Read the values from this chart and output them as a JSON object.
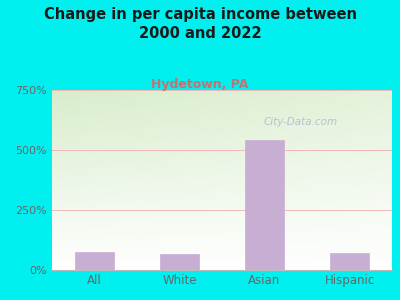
{
  "title": "Change in per capita income between\n2000 and 2022",
  "subtitle": "Hydetown, PA",
  "categories": [
    "All",
    "White",
    "Asian",
    "Hispanic"
  ],
  "values": [
    75,
    65,
    540,
    70
  ],
  "bar_color": "#c9aed4",
  "bar_edge_color": "#c9aed4",
  "background_color": "#00EFEF",
  "plot_bg_color_tl": "#d8edcc",
  "plot_bg_color_tr": "#e8f5e0",
  "plot_bg_color_bl": "#ffffff",
  "plot_bg_color_br": "#f5faf0",
  "title_color": "#1a1a1a",
  "subtitle_color": "#c87070",
  "tick_label_color": "#666666",
  "grid_color": "#f0b8b8",
  "ylim": [
    0,
    750
  ],
  "yticks": [
    0,
    250,
    500,
    750
  ],
  "ytick_labels": [
    "0%",
    "250%",
    "500%",
    "750%"
  ],
  "watermark": "City-Data.com",
  "watermark_color": "#aabbcc"
}
